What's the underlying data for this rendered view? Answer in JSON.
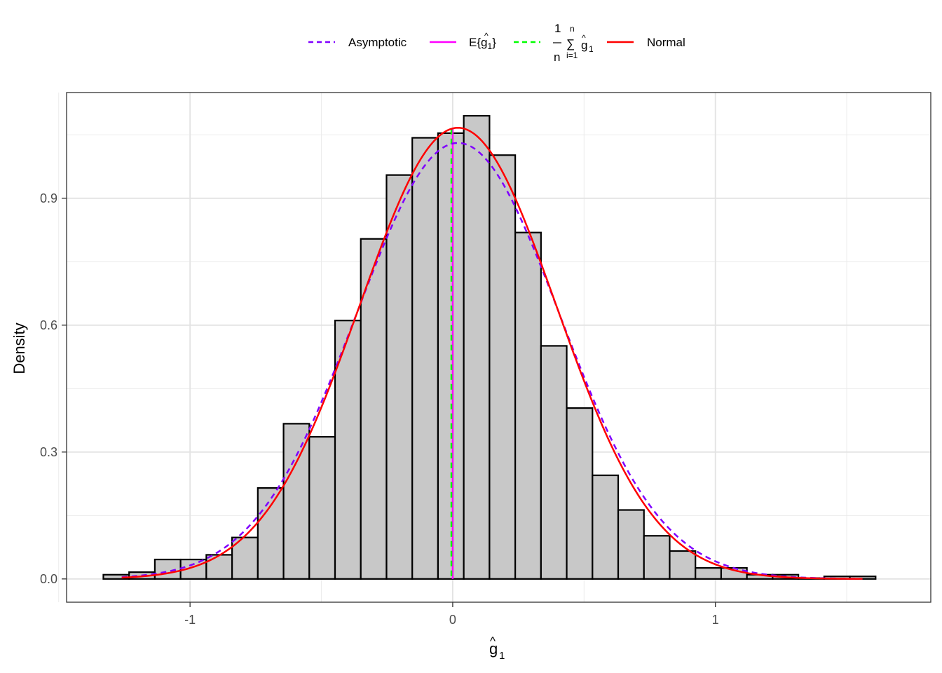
{
  "chart_data": {
    "type": "bar",
    "ylabel": "Density",
    "xlabel": {
      "base": "g",
      "hat": "^",
      "sub": "1"
    },
    "xlim": [
      -1.47,
      1.82
    ],
    "ylim": [
      -0.055,
      1.15
    ],
    "x_ticks": [
      {
        "value": -1,
        "label": "-1"
      },
      {
        "value": 0,
        "label": "0"
      },
      {
        "value": 1,
        "label": "1"
      }
    ],
    "y_ticks": [
      {
        "value": 0.0,
        "label": "0.0"
      },
      {
        "value": 0.3,
        "label": "0.3"
      },
      {
        "value": 0.6,
        "label": "0.6"
      },
      {
        "value": 0.9,
        "label": "0.9"
      }
    ],
    "x_minor": [
      -1.5,
      -0.5,
      0.5,
      1.5
    ],
    "y_minor": [
      0.15,
      0.45,
      0.75,
      1.05
    ],
    "grid": true,
    "legend_position": "top",
    "histogram": {
      "bin_width": 0.098,
      "fill": "#c8c8c8",
      "stroke": "#000000",
      "bins": [
        {
          "x0": -1.33,
          "density": 0.01
        },
        {
          "x0": -1.232,
          "density": 0.016
        },
        {
          "x0": -1.134,
          "density": 0.046
        },
        {
          "x0": -1.036,
          "density": 0.046
        },
        {
          "x0": -0.938,
          "density": 0.057
        },
        {
          "x0": -0.84,
          "density": 0.098
        },
        {
          "x0": -0.742,
          "density": 0.215
        },
        {
          "x0": -0.644,
          "density": 0.367
        },
        {
          "x0": -0.546,
          "density": 0.336
        },
        {
          "x0": -0.448,
          "density": 0.611
        },
        {
          "x0": -0.35,
          "density": 0.804
        },
        {
          "x0": -0.252,
          "density": 0.955
        },
        {
          "x0": -0.154,
          "density": 1.043
        },
        {
          "x0": -0.056,
          "density": 1.054
        },
        {
          "x0": 0.042,
          "density": 1.095
        },
        {
          "x0": 0.14,
          "density": 1.002
        },
        {
          "x0": 0.238,
          "density": 0.819
        },
        {
          "x0": 0.336,
          "density": 0.551
        },
        {
          "x0": 0.434,
          "density": 0.404
        },
        {
          "x0": 0.532,
          "density": 0.245
        },
        {
          "x0": 0.63,
          "density": 0.163
        },
        {
          "x0": 0.728,
          "density": 0.102
        },
        {
          "x0": 0.826,
          "density": 0.066
        },
        {
          "x0": 0.924,
          "density": 0.026
        },
        {
          "x0": 1.022,
          "density": 0.026
        },
        {
          "x0": 1.12,
          "density": 0.01
        },
        {
          "x0": 1.218,
          "density": 0.01
        },
        {
          "x0": 1.316,
          "density": 0.002
        },
        {
          "x0": 1.414,
          "density": 0.006
        },
        {
          "x0": 1.512,
          "density": 0.006
        }
      ]
    },
    "series": [
      {
        "name": "Asymptotic",
        "type": "normal_curve",
        "mean": 0.02,
        "sd": 0.387,
        "color": "#8000ff",
        "dash": "dashed",
        "range": [
          -1.26,
          1.56
        ]
      },
      {
        "name": "Normal",
        "type": "normal_curve",
        "mean": 0.02,
        "sd": 0.374,
        "color": "#ff0000",
        "dash": "solid",
        "range": [
          -1.26,
          1.56
        ]
      },
      {
        "name": "E{g1}",
        "type": "vline",
        "x": 0.0,
        "color": "#ff00ff",
        "dash": "solid"
      },
      {
        "name": "mean",
        "type": "vline",
        "x": -0.005,
        "color": "#00ff00",
        "dash": "dashed"
      }
    ],
    "legend": [
      {
        "key": "asymptotic",
        "label": "Asymptotic",
        "color": "#8000ff",
        "dash": "dashed"
      },
      {
        "key": "expect",
        "label_prefix": "E{",
        "label_base": "g",
        "label_hat": "^",
        "label_sub": "1",
        "label_suffix": "}",
        "color": "#ff00ff",
        "dash": "solid"
      },
      {
        "key": "mean",
        "frac_num": "1",
        "frac_den": "n",
        "sum_top": "n",
        "sum_bottom": "i=1",
        "sum_sign": "∑",
        "label_base": "g",
        "label_hat": "^",
        "label_sub": "1",
        "color": "#00ff00",
        "dash": "dashed"
      },
      {
        "key": "normal",
        "label": "Normal",
        "color": "#ff0000",
        "dash": "solid"
      }
    ]
  }
}
